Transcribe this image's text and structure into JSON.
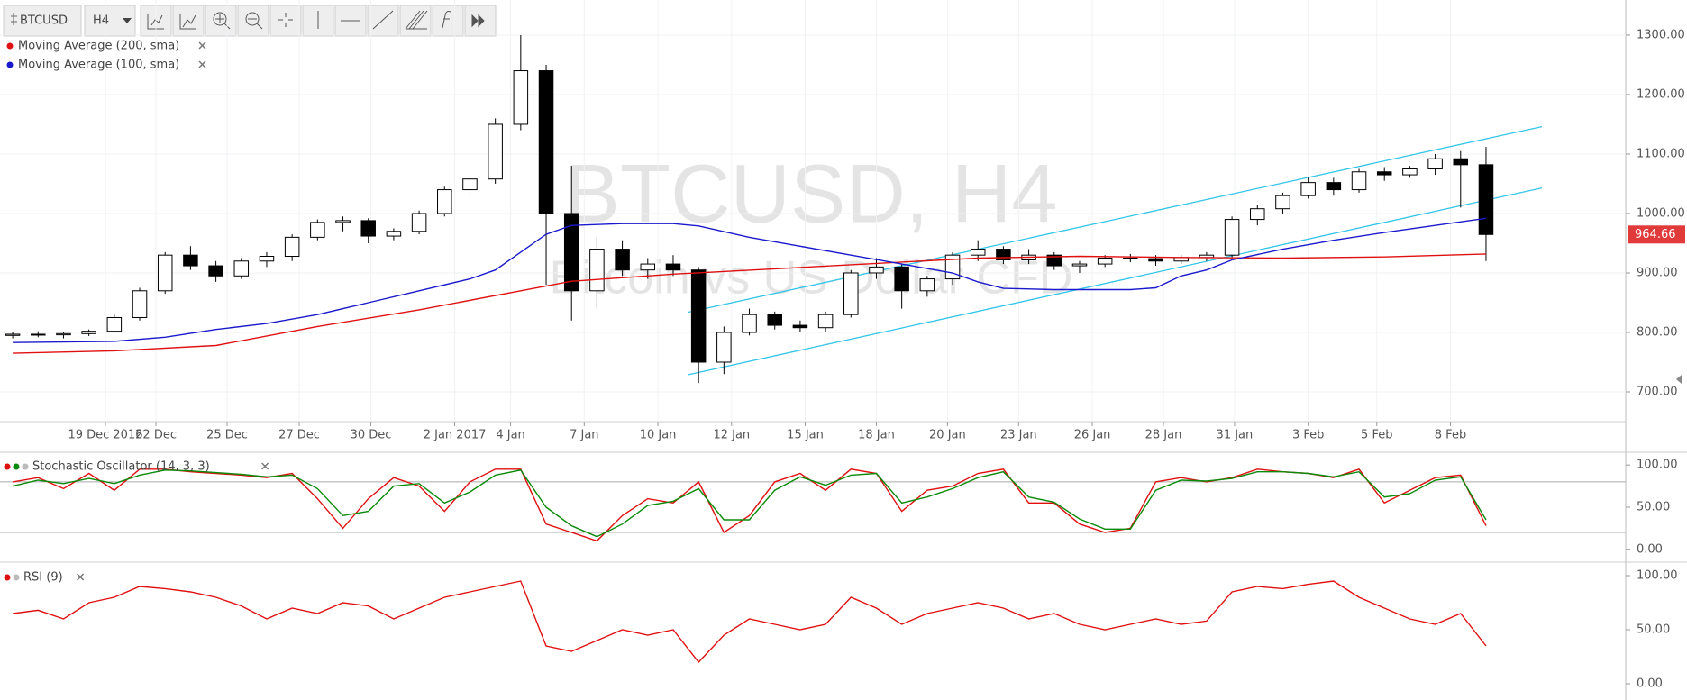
{
  "toolbar": {
    "symbol": "BTCUSD",
    "interval": "H4"
  },
  "chart_data": [
    {
      "type": "candlestick",
      "title": "BTCUSD, H4",
      "subtitle": "Bitcoin vs US Dollar CFD",
      "x": [
        0,
        1,
        2,
        3,
        4,
        5,
        6,
        7,
        8,
        9,
        10,
        11,
        12,
        13,
        14,
        15,
        16,
        17,
        18,
        19,
        20,
        21,
        22,
        23,
        24,
        25,
        26,
        27,
        28,
        29,
        30,
        31,
        32,
        33,
        34,
        35,
        36,
        37,
        38,
        39,
        40,
        41,
        42,
        43,
        44,
        45,
        46,
        47,
        48,
        49,
        50,
        51,
        52,
        53,
        54,
        55,
        56,
        57,
        58
      ],
      "open": [
        795,
        797,
        796,
        798,
        802,
        825,
        870,
        930,
        912,
        895,
        920,
        928,
        960,
        985,
        988,
        962,
        970,
        1000,
        1040,
        1058,
        1150,
        1240,
        1000,
        870,
        940,
        905,
        915,
        905,
        750,
        800,
        830,
        812,
        808,
        830,
        900,
        910,
        870,
        890,
        930,
        940,
        922,
        930,
        912,
        915,
        925,
        924,
        920,
        926,
        930,
        990,
        1008,
        1030,
        1052,
        1040,
        1070,
        1065,
        1075,
        1092,
        1082
      ],
      "high": [
        800,
        802,
        800,
        805,
        830,
        875,
        935,
        945,
        920,
        925,
        935,
        965,
        990,
        995,
        992,
        975,
        1005,
        1045,
        1065,
        1160,
        1300,
        1250,
        1080,
        960,
        955,
        925,
        930,
        910,
        810,
        840,
        835,
        820,
        835,
        905,
        925,
        915,
        895,
        935,
        955,
        945,
        940,
        935,
        920,
        930,
        932,
        930,
        930,
        935,
        995,
        1015,
        1035,
        1060,
        1060,
        1075,
        1078,
        1080,
        1100,
        1105,
        1112
      ],
      "low": [
        790,
        792,
        790,
        794,
        800,
        820,
        865,
        905,
        885,
        890,
        910,
        920,
        955,
        970,
        950,
        955,
        965,
        995,
        1030,
        1050,
        1140,
        880,
        820,
        840,
        895,
        890,
        895,
        715,
        730,
        795,
        805,
        800,
        800,
        825,
        890,
        840,
        860,
        880,
        920,
        915,
        915,
        905,
        900,
        910,
        918,
        912,
        915,
        920,
        925,
        980,
        1000,
        1025,
        1030,
        1035,
        1055,
        1060,
        1065,
        1010,
        920
      ],
      "close": [
        797,
        796,
        798,
        802,
        825,
        870,
        930,
        912,
        895,
        920,
        928,
        960,
        985,
        988,
        962,
        970,
        1000,
        1040,
        1058,
        1150,
        1240,
        1000,
        870,
        940,
        905,
        915,
        905,
        750,
        800,
        830,
        812,
        808,
        830,
        900,
        910,
        870,
        890,
        930,
        940,
        922,
        930,
        912,
        915,
        925,
        924,
        920,
        926,
        930,
        990,
        1008,
        1030,
        1052,
        1040,
        1070,
        1065,
        1075,
        1092,
        1082,
        964.66
      ],
      "up_color": "#ffffff",
      "down_color": "#000000",
      "last_price": 964.66,
      "last_price_color": "#e03a3a",
      "series": [
        {
          "name": "Moving Average (200, sma)",
          "color": "#e01010",
          "x": [
            0,
            4,
            8,
            12,
            16,
            20,
            22,
            26,
            30,
            34,
            38,
            42,
            46,
            50,
            54,
            58
          ],
          "values": [
            765,
            769,
            778,
            810,
            838,
            870,
            886,
            898,
            907,
            916,
            925,
            928,
            926,
            925,
            927,
            932
          ]
        },
        {
          "name": "Moving Average (100, sma)",
          "color": "#1a1acc",
          "x": [
            0,
            4,
            6,
            8,
            10,
            12,
            14,
            16,
            18,
            19,
            20,
            21,
            22,
            24,
            26,
            27,
            29,
            31,
            33,
            35,
            37,
            38,
            39,
            41,
            44,
            45,
            46,
            47,
            48,
            50,
            52,
            54,
            56,
            58
          ],
          "values": [
            783,
            785,
            792,
            805,
            815,
            830,
            850,
            870,
            890,
            905,
            935,
            965,
            980,
            983,
            983,
            979,
            960,
            945,
            930,
            915,
            900,
            885,
            874,
            872,
            872,
            875,
            895,
            905,
            922,
            940,
            955,
            968,
            980,
            992
          ]
        }
      ],
      "trendlines": [
        {
          "color": "#33c4e8",
          "x": [
            26.6,
            60.2
          ],
          "values": [
            834,
            1146
          ]
        },
        {
          "color": "#33c4e8",
          "x": [
            26.6,
            60.2
          ],
          "values": [
            729,
            1043
          ]
        }
      ],
      "xlim": [
        -0.5,
        63.5
      ],
      "xticks": [
        {
          "value": 3.65,
          "label": "19 Dec 2016"
        },
        {
          "value": 5.64,
          "label": "22 Dec"
        },
        {
          "value": 8.44,
          "label": "25 Dec"
        },
        {
          "value": 11.28,
          "label": "27 Dec"
        },
        {
          "value": 14.1,
          "label": "30 Dec"
        },
        {
          "value": 17.4,
          "label": "2 Jan 2017"
        },
        {
          "value": 19.6,
          "label": "4 Jan"
        },
        {
          "value": 22.5,
          "label": "7 Jan"
        },
        {
          "value": 25.4,
          "label": "10 Jan"
        },
        {
          "value": 28.3,
          "label": "12 Jan"
        },
        {
          "value": 31.2,
          "label": "15 Jan"
        },
        {
          "value": 34.0,
          "label": "18 Jan"
        },
        {
          "value": 36.8,
          "label": "20 Jan"
        },
        {
          "value": 39.6,
          "label": "23 Jan"
        },
        {
          "value": 42.5,
          "label": "26 Jan"
        },
        {
          "value": 45.3,
          "label": "28 Jan"
        },
        {
          "value": 48.1,
          "label": "31 Jan"
        },
        {
          "value": 51.0,
          "label": "3 Feb"
        },
        {
          "value": 53.7,
          "label": "5 Feb"
        },
        {
          "value": 56.6,
          "label": "8 Feb"
        }
      ],
      "ylim": [
        650,
        1359
      ],
      "yticks": [
        {
          "value": 700,
          "label": "700.00"
        },
        {
          "value": 800,
          "label": "800.00"
        },
        {
          "value": 900,
          "label": "900.00"
        },
        {
          "value": 1000,
          "label": "1000.00"
        },
        {
          "value": 1100,
          "label": "1100.00"
        },
        {
          "value": 1200,
          "label": "1200.00"
        },
        {
          "value": 1300,
          "label": "1300.00"
        }
      ],
      "grid": true
    },
    {
      "type": "line",
      "title": "Stochastic Oscillator (14, 3, 3)",
      "x": [
        0,
        1,
        2,
        3,
        4,
        5,
        6,
        7,
        8,
        9,
        10,
        11,
        12,
        13,
        14,
        15,
        16,
        17,
        18,
        19,
        20,
        21,
        22,
        23,
        24,
        25,
        26,
        27,
        28,
        29,
        30,
        31,
        32,
        33,
        34,
        35,
        36,
        37,
        38,
        39,
        40,
        41,
        42,
        43,
        44,
        45,
        46,
        47,
        48,
        49,
        50,
        51,
        52,
        53,
        54,
        55,
        56,
        57,
        58
      ],
      "series": [
        {
          "color": "#e01010",
          "values": [
            80,
            85,
            72,
            90,
            70,
            95,
            95,
            92,
            90,
            88,
            85,
            90,
            60,
            25,
            60,
            85,
            75,
            45,
            80,
            95,
            95,
            30,
            20,
            10,
            40,
            60,
            55,
            80,
            20,
            40,
            80,
            90,
            70,
            95,
            90,
            45,
            70,
            75,
            90,
            95,
            55,
            55,
            30,
            20,
            25,
            80,
            85,
            80,
            85,
            95,
            92,
            90,
            85,
            95,
            55,
            70,
            85,
            88,
            28
          ]
        },
        {
          "color": "#0a8a0a",
          "values": [
            75,
            82,
            78,
            84,
            78,
            88,
            94,
            93,
            91,
            89,
            86,
            88,
            72,
            40,
            45,
            75,
            78,
            55,
            68,
            88,
            94,
            50,
            28,
            15,
            30,
            52,
            57,
            72,
            35,
            35,
            70,
            86,
            76,
            88,
            90,
            55,
            62,
            72,
            85,
            92,
            62,
            56,
            36,
            24,
            24,
            70,
            82,
            81,
            84,
            92,
            92,
            90,
            86,
            92,
            62,
            66,
            82,
            86,
            35
          ]
        }
      ],
      "bands": [
        80,
        20
      ],
      "xlim": [
        -0.5,
        63.5
      ],
      "ylim": [
        -12,
        113
      ],
      "yticks": [
        {
          "value": 0,
          "label": "0.00"
        },
        {
          "value": 50,
          "label": "50.00"
        },
        {
          "value": 100,
          "label": "100.00"
        }
      ]
    },
    {
      "type": "line",
      "title": "RSI (9)",
      "x": [
        0,
        1,
        2,
        3,
        4,
        5,
        6,
        7,
        8,
        9,
        10,
        11,
        12,
        13,
        14,
        15,
        16,
        17,
        18,
        19,
        20,
        21,
        22,
        23,
        24,
        25,
        26,
        27,
        28,
        29,
        30,
        31,
        32,
        33,
        34,
        35,
        36,
        37,
        38,
        39,
        40,
        41,
        42,
        43,
        44,
        45,
        46,
        47,
        48,
        49,
        50,
        51,
        52,
        53,
        54,
        55,
        56,
        57,
        58
      ],
      "series": [
        {
          "color": "#e01010",
          "values": [
            65,
            68,
            60,
            75,
            80,
            90,
            88,
            85,
            80,
            72,
            60,
            70,
            65,
            75,
            72,
            60,
            70,
            80,
            85,
            90,
            95,
            35,
            30,
            40,
            50,
            45,
            50,
            20,
            45,
            60,
            55,
            50,
            55,
            80,
            70,
            55,
            65,
            70,
            75,
            70,
            60,
            65,
            55,
            50,
            55,
            60,
            55,
            58,
            85,
            90,
            88,
            92,
            95,
            80,
            70,
            60,
            55,
            65,
            35
          ]
        }
      ],
      "xlim": [
        -0.5,
        63.5
      ],
      "ylim": [
        -10,
        110
      ],
      "yticks": [
        {
          "value": 0,
          "label": "0.00"
        },
        {
          "value": 50,
          "label": "50.00"
        },
        {
          "value": 100,
          "label": "100.00"
        }
      ]
    }
  ]
}
